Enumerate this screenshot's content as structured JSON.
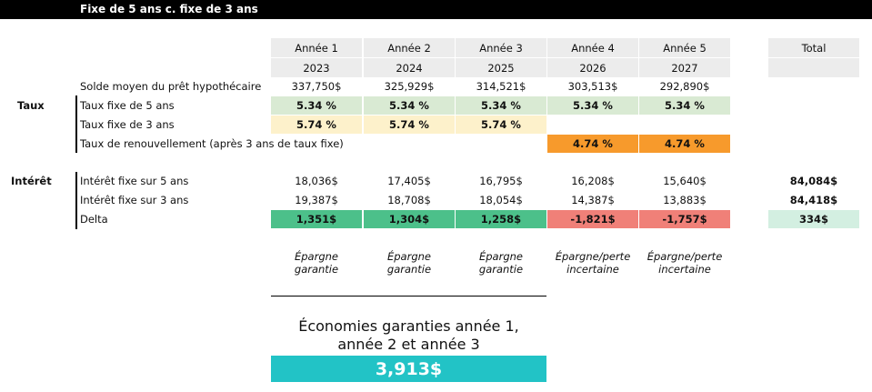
{
  "title": "Fixe de 5 ans c. fixe de 3 ans",
  "years": [
    {
      "label": "Année 1",
      "year": "2023"
    },
    {
      "label": "Année 2",
      "year": "2024"
    },
    {
      "label": "Année 3",
      "year": "2025"
    },
    {
      "label": "Année 4",
      "year": "2026"
    },
    {
      "label": "Année 5",
      "year": "2027"
    }
  ],
  "total_label": "Total",
  "sections": {
    "taux": "Taux",
    "interet": "Intérêt"
  },
  "rows": {
    "solde": {
      "label": "Solde moyen du prêt hypothécaire",
      "values": [
        "337,750$",
        "325,929$",
        "314,521$",
        "303,513$",
        "292,890$"
      ]
    },
    "taux5": {
      "label": "Taux fixe de 5 ans",
      "values": [
        "5.34 %",
        "5.34 %",
        "5.34 %",
        "5.34 %",
        "5.34 %"
      ]
    },
    "taux3": {
      "label": "Taux fixe de 3 ans",
      "values": [
        "5.74 %",
        "5.74 %",
        "5.74 %"
      ]
    },
    "renouv": {
      "label": "Taux de renouvellement (après 3 ans de taux fixe)",
      "values": [
        "4.74 %",
        "4.74 %"
      ]
    },
    "int5": {
      "label": "Intérêt fixe sur 5 ans",
      "values": [
        "18,036$",
        "17,405$",
        "16,795$",
        "16,208$",
        "15,640$"
      ],
      "total": "84,084$"
    },
    "int3": {
      "label": "Intérêt fixe sur 3 ans",
      "values": [
        "19,387$",
        "18,708$",
        "18,054$",
        "14,387$",
        "13,883$"
      ],
      "total": "84,418$"
    },
    "delta": {
      "label": "Delta",
      "values": [
        "1,351$",
        "1,304$",
        "1,258$",
        "-1,821$",
        "-1,757$"
      ],
      "total": "334$"
    }
  },
  "notes": {
    "guaranteed_1": "Épargne",
    "guaranteed_2": "garantie",
    "uncertain_1": "Épargne/perte",
    "uncertain_2": "incertaine"
  },
  "summary": {
    "line1": "Économies garanties année 1,",
    "line2": "année 2 et année 3",
    "value": "3,913$"
  },
  "colors": {
    "header_bg": "#ececec",
    "rate_5y_bg": "#d9ead3",
    "rate_3y_bg": "#fdf1cb",
    "renewal_bg": "#f79a2c",
    "delta_positive_bg": "#4cc08a",
    "delta_negative_bg": "#f08078",
    "total_delta_bg": "#d3efe1",
    "summary_bg": "#22c3c6"
  }
}
